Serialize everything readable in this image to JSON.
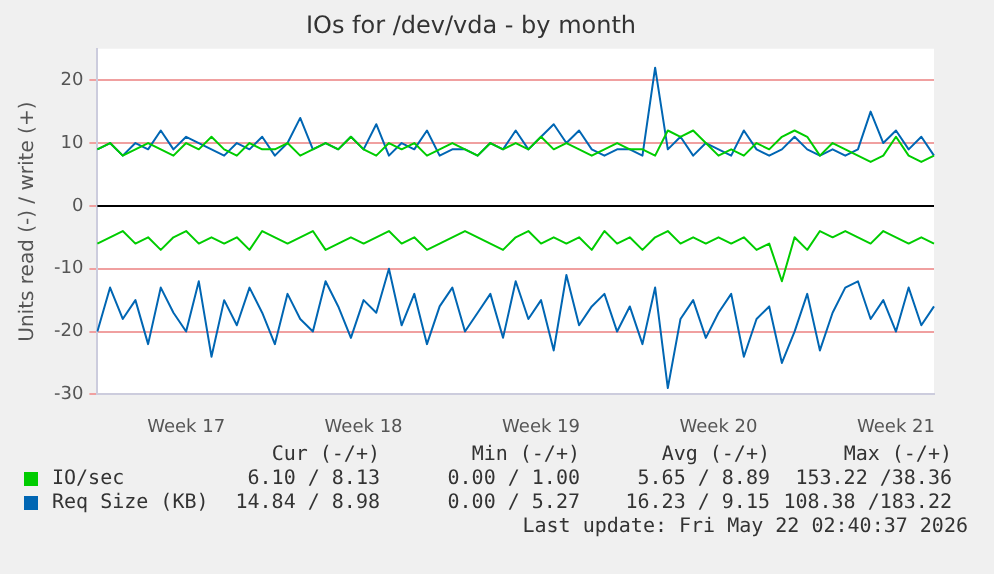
{
  "chart_data": {
    "type": "line",
    "title": "IOs for /dev/vda - by month",
    "ylabel": "Units read (-) / write (+)",
    "categories": [
      null,
      null,
      null,
      null,
      null,
      null,
      null,
      "Week 17",
      null,
      null,
      null,
      null,
      null,
      null,
      null,
      null,
      null,
      null,
      null,
      null,
      null,
      "Week 18",
      null,
      null,
      null,
      null,
      null,
      null,
      null,
      null,
      null,
      null,
      null,
      null,
      null,
      "Week 19",
      null,
      null,
      null,
      null,
      null,
      null,
      null,
      null,
      null,
      null,
      null,
      null,
      null,
      "Week 20",
      null,
      null,
      null,
      null,
      null,
      null,
      null,
      null,
      null,
      null,
      null,
      null,
      null,
      "Week 21",
      null,
      null,
      null
    ],
    "ylim": [
      -30,
      25
    ],
    "yticks": [
      -30,
      -20,
      -10,
      0,
      10,
      20
    ],
    "grid": true,
    "legend": "bottom left",
    "marker": "none",
    "line_style": "solid",
    "ref_lines": [
      {
        "axis": "y",
        "value": 0,
        "color": "#000000"
      }
    ],
    "series": [
      {
        "name": "IO/sec",
        "color": "#00cc00",
        "values": [
          9,
          10,
          8,
          9,
          10,
          9,
          8,
          10,
          9,
          11,
          9,
          8,
          10,
          9,
          9,
          10,
          8,
          9,
          10,
          9,
          11,
          9,
          8,
          10,
          9,
          10,
          8,
          9,
          10,
          9,
          8,
          10,
          9,
          10,
          9,
          11,
          9,
          10,
          9,
          8,
          9,
          10,
          9,
          9,
          8,
          12,
          11,
          12,
          10,
          8,
          9,
          8,
          10,
          9,
          11,
          12,
          11,
          8,
          10,
          9,
          8,
          7,
          8,
          11,
          8,
          7,
          8
        ]
      },
      {
        "color": "#00cc00",
        "values": [
          -6,
          -5,
          -4,
          -6,
          -5,
          -7,
          -5,
          -4,
          -6,
          -5,
          -6,
          -5,
          -7,
          -4,
          -5,
          -6,
          -5,
          -4,
          -7,
          -6,
          -5,
          -6,
          -5,
          -4,
          -6,
          -5,
          -7,
          -6,
          -5,
          -4,
          -5,
          -6,
          -7,
          -5,
          -4,
          -6,
          -5,
          -6,
          -5,
          -7,
          -4,
          -6,
          -5,
          -7,
          -5,
          -4,
          -6,
          -5,
          -6,
          -5,
          -6,
          -5,
          -7,
          -6,
          -12,
          -5,
          -7,
          -4,
          -5,
          -4,
          -5,
          -6,
          -4,
          -5,
          -6,
          -5,
          -6
        ]
      },
      {
        "name": "Req Size (KB)",
        "color": "#0066b3",
        "values": [
          9,
          10,
          8,
          10,
          9,
          12,
          9,
          11,
          10,
          9,
          8,
          10,
          9,
          11,
          8,
          10,
          14,
          9,
          10,
          9,
          11,
          9,
          13,
          8,
          10,
          9,
          12,
          8,
          9,
          9,
          8,
          10,
          9,
          12,
          9,
          11,
          13,
          10,
          12,
          9,
          8,
          9,
          9,
          8,
          22,
          9,
          11,
          8,
          10,
          9,
          8,
          12,
          9,
          8,
          9,
          11,
          9,
          8,
          9,
          8,
          9,
          15,
          10,
          12,
          9,
          11,
          8
        ]
      },
      {
        "color": "#0066b3",
        "values": [
          -20,
          -13,
          -18,
          -15,
          -22,
          -13,
          -17,
          -20,
          -12,
          -24,
          -15,
          -19,
          -13,
          -17,
          -22,
          -14,
          -18,
          -20,
          -12,
          -16,
          -21,
          -15,
          -17,
          -10,
          -19,
          -14,
          -22,
          -16,
          -13,
          -20,
          -17,
          -14,
          -21,
          -12,
          -18,
          -15,
          -23,
          -11,
          -19,
          -16,
          -14,
          -20,
          -16,
          -22,
          -13,
          -29,
          -18,
          -15,
          -21,
          -17,
          -14,
          -24,
          -18,
          -16,
          -25,
          -20,
          -14,
          -23,
          -17,
          -13,
          -12,
          -18,
          -15,
          -20,
          -13,
          -19,
          -16
        ]
      }
    ],
    "annotations": [
      "Cur (-/+)",
      "Min (-/+)",
      "Avg (-/+)",
      "Max (-/+)",
      "6.10 / 8.13",
      "0.00 / 1.00",
      "5.65 / 8.89",
      "153.22 /38.36",
      "14.84 / 8.98",
      "0.00 / 5.27",
      "16.23 / 9.15",
      "108.38 /183.22",
      "Last update: Fri May 22 02:40:37 2026"
    ]
  }
}
